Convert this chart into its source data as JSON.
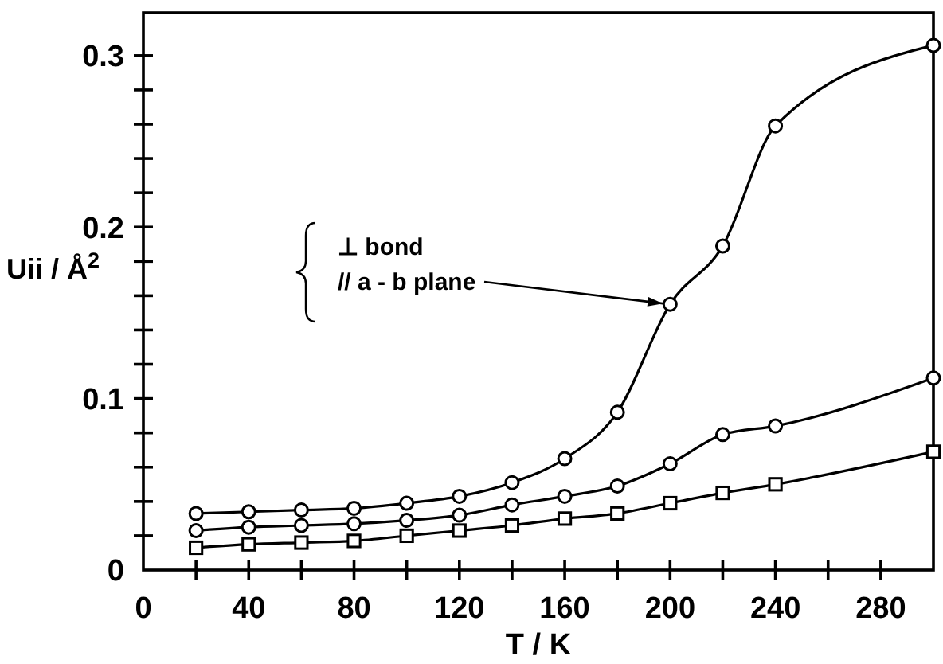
{
  "chart_data": {
    "type": "line",
    "xlabel": "T / K",
    "ylabel": "Uii / Å$^{2}$",
    "x": [
      20,
      40,
      60,
      80,
      100,
      120,
      140,
      160,
      180,
      200,
      220,
      240,
      300
    ],
    "series": [
      {
        "color": "#000000",
        "marker": "circle",
        "values": [
          0.033,
          0.034,
          0.035,
          0.036,
          0.039,
          0.043,
          0.051,
          0.065,
          0.092,
          0.155,
          0.189,
          0.259,
          0.306
        ]
      },
      {
        "color": "#000000",
        "marker": "circle",
        "values": [
          0.023,
          0.025,
          0.026,
          0.027,
          0.029,
          0.032,
          0.038,
          0.043,
          0.049,
          0.062,
          0.079,
          0.084,
          0.112
        ]
      },
      {
        "color": "#000000",
        "marker": "square",
        "values": [
          0.013,
          0.015,
          0.016,
          0.017,
          0.02,
          0.023,
          0.026,
          0.03,
          0.033,
          0.039,
          0.045,
          0.05,
          0.069
        ]
      }
    ],
    "xlim": [
      0,
      300
    ],
    "xticks": [
      0,
      {
        "value": 20,
        "label": null
      },
      40,
      {
        "value": 60,
        "label": null
      },
      80,
      {
        "value": 100,
        "label": null
      },
      120,
      {
        "value": 140,
        "label": null
      },
      160,
      {
        "value": 180,
        "label": null
      },
      200,
      {
        "value": 220,
        "label": null
      },
      240,
      {
        "value": 260,
        "label": null
      },
      280
    ],
    "ylim": [
      0,
      0.325
    ],
    "yticks": [
      0,
      {
        "value": 0.02,
        "label": null
      },
      {
        "value": 0.04,
        "label": null
      },
      {
        "value": 0.06,
        "label": null
      },
      {
        "value": 0.08,
        "label": null
      },
      0.1,
      {
        "value": 0.12,
        "label": null
      },
      {
        "value": 0.14,
        "label": null
      },
      {
        "value": 0.16,
        "label": null
      },
      {
        "value": 0.18,
        "label": null
      },
      0.2,
      {
        "value": 0.22,
        "label": null
      },
      {
        "value": 0.24,
        "label": null
      },
      {
        "value": 0.26,
        "label": null
      },
      {
        "value": 0.28,
        "label": null
      },
      0.3
    ],
    "grid": false,
    "line_style": "solid",
    "annotations": [
      "⊥  bond",
      {
        "text": "//  a - b plane",
        "x": 200,
        "y": 0.155
      }
    ]
  }
}
